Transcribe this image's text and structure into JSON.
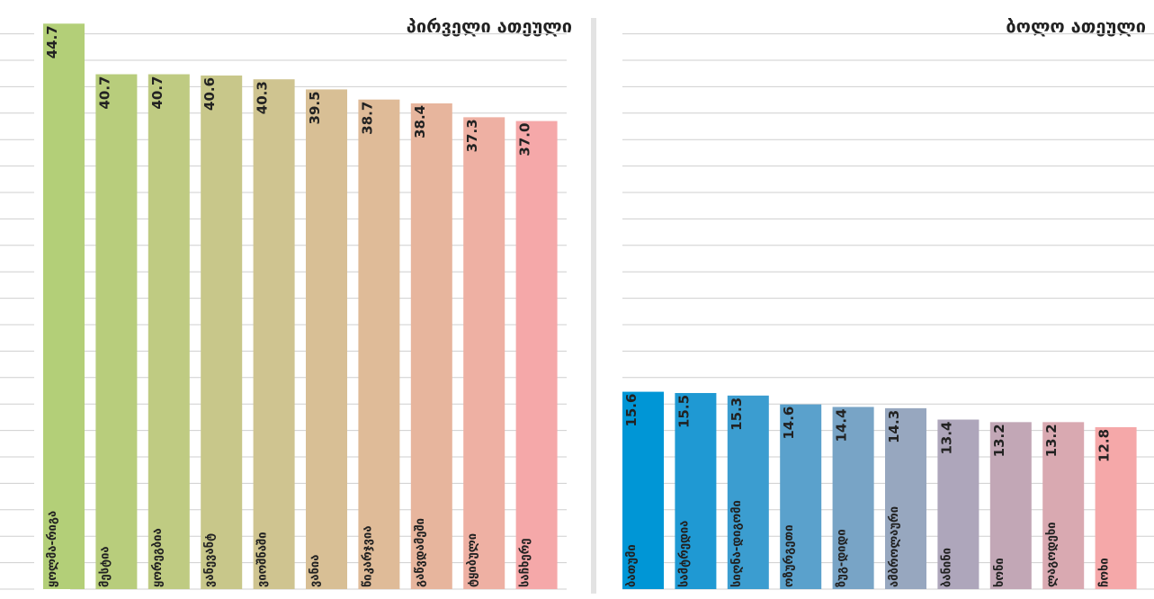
{
  "chart_data": [
    {
      "type": "bar",
      "title": "პირველი ათეული",
      "categories": [
        "ყოლმა-რიგა",
        "მესტია",
        "ყორეგბია",
        "ვანევანტ",
        "ვიოშნაში",
        "ვანია",
        "წიკარჯვია",
        "გაწვდამეში",
        "ტყიბული",
        "საჩხერე"
      ],
      "values": [
        44.7,
        40.7,
        40.7,
        40.6,
        40.3,
        39.5,
        38.7,
        38.4,
        37.3,
        37.0
      ],
      "value_labels": [
        "44.7",
        "40.7",
        "40.7",
        "40.6",
        "40.3",
        "39.5",
        "38.7",
        "38.4",
        "37.3",
        "37.0"
      ],
      "colors": [
        "#b3cf78",
        "#b8cd7c",
        "#bfcb82",
        "#c8c78a",
        "#cfc490",
        "#d8bf95",
        "#dfbb98",
        "#e7b59d",
        "#eeb0a3",
        "#f5a8a9"
      ],
      "ylim": [
        0,
        46
      ],
      "grid": true
    },
    {
      "type": "bar",
      "title": "ბოლო ათეული",
      "categories": [
        "ბათუმი",
        "სამტრედია",
        "სიღნა-დიგომი",
        "ოზურგეთი",
        "ზუგ-დიდი",
        "ამბროლაური",
        "ბანინი",
        "ხონი",
        "ლაგოდეხი",
        "ჩოხი"
      ],
      "values": [
        15.6,
        15.5,
        15.3,
        14.6,
        14.4,
        14.3,
        13.4,
        13.2,
        13.2,
        12.8
      ],
      "value_labels": [
        "15.6",
        "15.5",
        "15.3",
        "14.6",
        "14.4",
        "14.3",
        "13.4",
        "13.2",
        "13.2",
        "12.8"
      ],
      "colors": [
        "#0096d6",
        "#1f99d3",
        "#3b9dd0",
        "#5aa1cc",
        "#78a4c6",
        "#97a7bf",
        "#aea6bb",
        "#c2a7b6",
        "#d9a9b1",
        "#f5a8a9"
      ],
      "ylim": [
        0,
        46
      ],
      "grid": true
    }
  ]
}
